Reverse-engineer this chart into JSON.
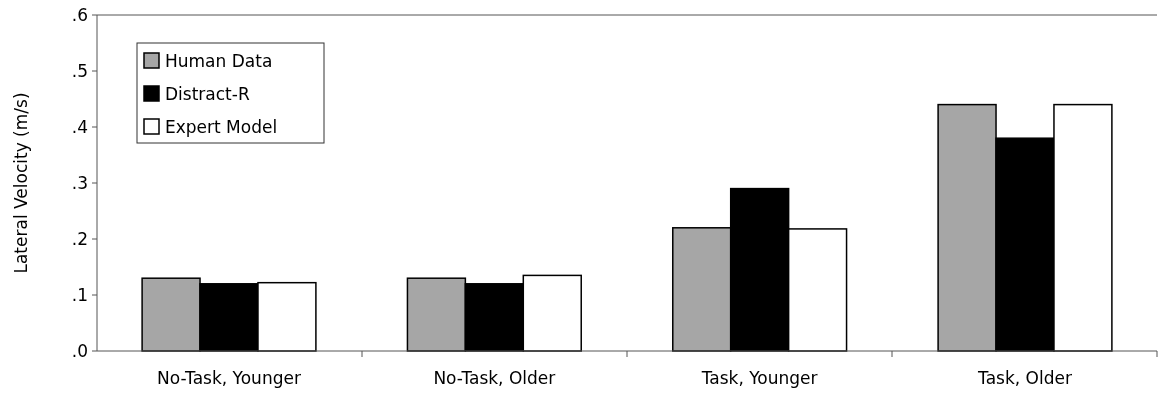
{
  "chart_data": {
    "type": "bar",
    "ylabel": "Lateral Velocity (m/s)",
    "categories": [
      "No-Task, Younger",
      "No-Task, Older",
      "Task, Younger",
      "Task, Older"
    ],
    "series": [
      {
        "name": "Human Data",
        "color": "#a6a6a6",
        "values": [
          0.13,
          0.13,
          0.22,
          0.44
        ]
      },
      {
        "name": "Distract-R",
        "color": "#000000",
        "values": [
          0.12,
          0.12,
          0.29,
          0.38
        ]
      },
      {
        "name": "Expert Model",
        "color": "#ffffff",
        "values": [
          0.122,
          0.135,
          0.218,
          0.44
        ]
      }
    ],
    "ylim": [
      0,
      0.6
    ],
    "yticks": [
      {
        "value": 0,
        "label": ".0"
      },
      {
        "value": 0.1,
        "label": ".1"
      },
      {
        "value": 0.2,
        "label": ".2"
      },
      {
        "value": 0.3,
        "label": ".3"
      },
      {
        "value": 0.4,
        "label": ".4"
      },
      {
        "value": 0.5,
        "label": ".5"
      },
      {
        "value": 0.6,
        "label": ".6"
      }
    ],
    "grid": false,
    "legend": "top left"
  }
}
